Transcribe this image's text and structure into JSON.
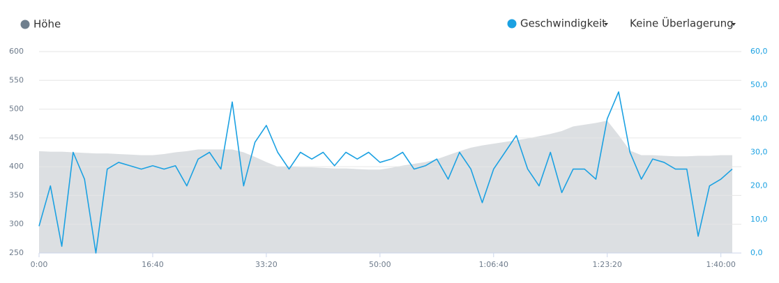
{
  "chart_data": {
    "type": "line",
    "x": [
      0,
      100,
      200,
      300,
      400,
      500,
      600,
      700,
      800,
      900,
      1000,
      1100,
      1200,
      1300,
      1400,
      1500,
      1600,
      1700,
      1800,
      1900,
      2000,
      2100,
      2200,
      2300,
      2400,
      2500,
      2600,
      2700,
      2800,
      2900,
      3000,
      3100,
      3200,
      3300,
      3400,
      3500,
      3600,
      3700,
      3800,
      3900,
      4000,
      4100,
      4200,
      4300,
      4400,
      4500,
      4600,
      4700,
      4800,
      4900,
      5000,
      5100,
      5200,
      5300,
      5400,
      5500,
      5600,
      5700,
      5800,
      5900,
      6000,
      6100
    ],
    "xlim": [
      0,
      6180
    ],
    "xticks": [
      {
        "value": 0,
        "label": "0:00"
      },
      {
        "value": 1000,
        "label": "16:40"
      },
      {
        "value": 2000,
        "label": "33:20"
      },
      {
        "value": 3000,
        "label": "50:00"
      },
      {
        "value": 4000,
        "label": "1:06:40"
      },
      {
        "value": 5000,
        "label": "1:23:20"
      },
      {
        "value": 6000,
        "label": "1:40:00"
      }
    ],
    "ylim": [
      250,
      600
    ],
    "yticks": [
      250,
      300,
      350,
      400,
      450,
      500,
      550,
      600
    ],
    "y2lim": [
      0,
      60
    ],
    "y2ticks": [
      {
        "value": 0,
        "label": "0,0"
      },
      {
        "value": 10,
        "label": "10,0"
      },
      {
        "value": 20,
        "label": "20,0"
      },
      {
        "value": 30,
        "label": "30,0"
      },
      {
        "value": 40,
        "label": "40,0"
      },
      {
        "value": 50,
        "label": "50,0"
      },
      {
        "value": 60,
        "label": "60,0"
      }
    ],
    "grid": true,
    "overlay_menu": "Keine Überlagerung",
    "series": [
      {
        "name": "Höhe",
        "type": "area",
        "color": "#dcdfe2",
        "legend_color": "#6f7f8e",
        "values": [
          427,
          426,
          426,
          425,
          424,
          423,
          423,
          422,
          421,
          420,
          420,
          422,
          425,
          427,
          430,
          430,
          430,
          430,
          425,
          417,
          408,
          400,
          400,
          399,
          399,
          398,
          397,
          397,
          396,
          395,
          395,
          398,
          402,
          405,
          408,
          413,
          420,
          427,
          433,
          437,
          440,
          443,
          446,
          449,
          453,
          457,
          462,
          470,
          473,
          476,
          480,
          455,
          428,
          420,
          420,
          419,
          418,
          418,
          419,
          419,
          420,
          420
        ]
      },
      {
        "name": "Geschwindigkeit",
        "type": "line",
        "axis": "y2",
        "color": "#1ba1e2",
        "values": [
          8,
          20,
          2,
          30,
          22,
          0,
          25,
          27,
          26,
          25,
          26,
          25,
          26,
          20,
          28,
          30,
          25,
          45,
          20,
          33,
          38,
          30,
          25,
          30,
          28,
          30,
          26,
          30,
          28,
          30,
          27,
          28,
          30,
          25,
          26,
          28,
          22,
          30,
          25,
          15,
          25,
          30,
          35,
          25,
          20,
          30,
          18,
          25,
          25,
          22,
          40,
          48,
          30,
          22,
          28,
          27,
          25,
          25,
          5,
          20,
          22,
          25
        ]
      }
    ]
  }
}
